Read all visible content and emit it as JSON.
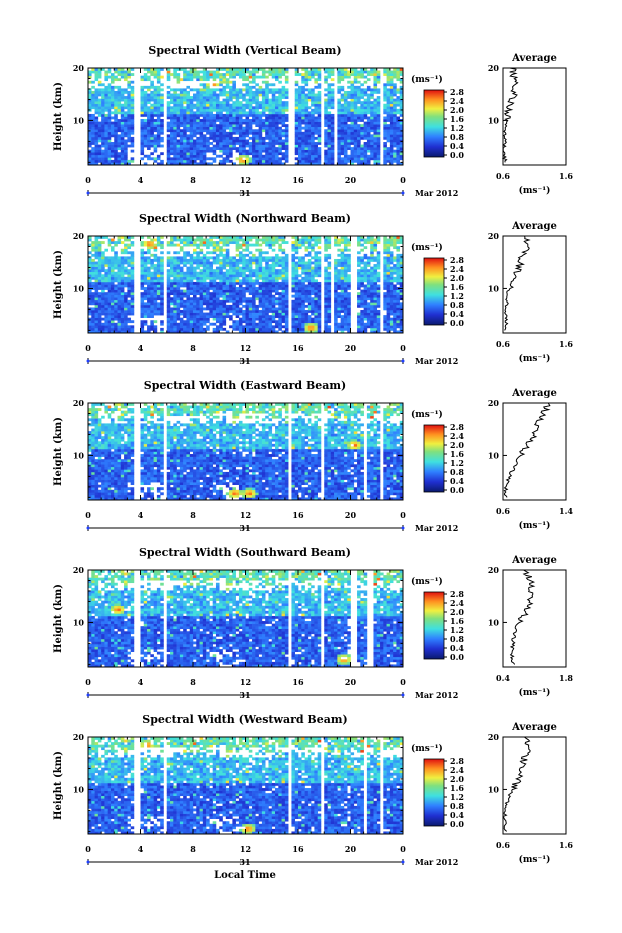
{
  "figure": {
    "x_axis_label": "Local Time",
    "date_label": "Mar 2012",
    "day_label": "31",
    "colorbar_unit": "(ms⁻¹)",
    "colorbar_ticks": [
      "0.0",
      "0.4",
      "0.8",
      "1.2",
      "1.6",
      "2.0",
      "2.4",
      "2.8"
    ],
    "x_ticks": [
      "0",
      "4",
      "8",
      "12",
      "16",
      "20",
      "0"
    ],
    "y_label": "Height (km)",
    "y_ticks": [
      "10",
      "20"
    ],
    "average_title": "Average",
    "average_xlabel": "(ms⁻¹)"
  },
  "chart_data": [
    {
      "type": "heatmap",
      "title": "Spectral Width (Vertical Beam)",
      "xlabel": "",
      "ylabel": "Height (km)",
      "x_range_hours": [
        0,
        24
      ],
      "ylim": [
        1.5,
        20
      ],
      "clim": [
        0,
        2.8
      ],
      "gaps_hours": [
        [
          3.6,
          3.9
        ],
        [
          5.8,
          6.1
        ],
        [
          15.2,
          15.7
        ],
        [
          17.8,
          18.1
        ],
        [
          18.7,
          19.0
        ],
        [
          20.9,
          21.1
        ],
        [
          22.3,
          22.6
        ]
      ],
      "hotspots": [
        {
          "x_hours": 11.8,
          "height_km": 2.5
        },
        {
          "x_hours": 9.5,
          "height_km": 17
        }
      ],
      "avg_profile": {
        "xlim": [
          0.6,
          1.6
        ],
        "xticks": [
          "0.6",
          "1.6"
        ],
        "height_km": [
          2,
          4,
          6,
          8,
          10,
          12,
          14,
          16,
          18,
          20
        ],
        "values": [
          0.63,
          0.62,
          0.63,
          0.64,
          0.66,
          0.7,
          0.75,
          0.8,
          0.78,
          0.75
        ]
      }
    },
    {
      "type": "heatmap",
      "title": "Spectral Width (Northward Beam)",
      "xlabel": "",
      "ylabel": "Height (km)",
      "x_range_hours": [
        0,
        24
      ],
      "ylim": [
        1.5,
        20
      ],
      "clim": [
        0,
        2.8
      ],
      "gaps_hours": [
        [
          3.6,
          3.9
        ],
        [
          5.8,
          6.1
        ],
        [
          15.2,
          15.5
        ],
        [
          17.8,
          18.1
        ],
        [
          18.5,
          18.8
        ],
        [
          20.0,
          20.5
        ],
        [
          22.3,
          22.6
        ]
      ],
      "hotspots": [
        {
          "x_hours": 17.0,
          "height_km": 2.5
        },
        {
          "x_hours": 4.7,
          "height_km": 18.5
        }
      ],
      "avg_profile": {
        "xlim": [
          0.6,
          1.6
        ],
        "xticks": [
          "0.6",
          "1.6"
        ],
        "height_km": [
          2,
          4,
          6,
          8,
          10,
          12,
          14,
          16,
          18,
          20
        ],
        "values": [
          0.65,
          0.64,
          0.65,
          0.67,
          0.7,
          0.76,
          0.85,
          0.9,
          1.05,
          0.9
        ]
      }
    },
    {
      "type": "heatmap",
      "title": "Spectral Width (Eastward Beam)",
      "xlabel": "",
      "ylabel": "Height (km)",
      "x_range_hours": [
        0,
        24
      ],
      "ylim": [
        1.5,
        20
      ],
      "clim": [
        0,
        2.8
      ],
      "gaps_hours": [
        [
          3.6,
          3.9
        ],
        [
          5.8,
          6.1
        ],
        [
          15.2,
          15.5
        ],
        [
          17.8,
          18.1
        ],
        [
          20.9,
          21.2
        ],
        [
          22.3,
          22.6
        ]
      ],
      "hotspots": [
        {
          "x_hours": 11.2,
          "height_km": 2.8
        },
        {
          "x_hours": 12.3,
          "height_km": 2.8
        },
        {
          "x_hours": 20.3,
          "height_km": 12
        }
      ],
      "avg_profile": {
        "xlim": [
          0.6,
          1.4
        ],
        "xticks": [
          "0.6",
          "1.4"
        ],
        "height_km": [
          2,
          4,
          6,
          8,
          10,
          12,
          14,
          16,
          18,
          20
        ],
        "values": [
          0.63,
          0.64,
          0.68,
          0.75,
          0.82,
          0.9,
          1.0,
          1.05,
          1.1,
          1.2
        ]
      }
    },
    {
      "type": "heatmap",
      "title": "Spectral Width (Southward Beam)",
      "xlabel": "",
      "ylabel": "Height (km)",
      "x_range_hours": [
        0,
        24
      ],
      "ylim": [
        1.5,
        20
      ],
      "clim": [
        0,
        2.8
      ],
      "gaps_hours": [
        [
          3.6,
          3.9
        ],
        [
          5.8,
          6.1
        ],
        [
          15.2,
          15.5
        ],
        [
          17.8,
          18.1
        ],
        [
          20.0,
          20.5
        ],
        [
          21.3,
          21.7
        ]
      ],
      "hotspots": [
        {
          "x_hours": 19.5,
          "height_km": 3.0
        },
        {
          "x_hours": 2.3,
          "height_km": 12.5
        }
      ],
      "avg_profile": {
        "xlim": [
          0.4,
          1.8
        ],
        "xticks": [
          "0.4",
          "1.8"
        ],
        "height_km": [
          2,
          4,
          6,
          8,
          10,
          12,
          14,
          16,
          18,
          20
        ],
        "values": [
          0.62,
          0.6,
          0.62,
          0.65,
          0.75,
          0.9,
          1.0,
          1.05,
          1.0,
          0.9
        ]
      }
    },
    {
      "type": "heatmap",
      "title": "Spectral Width (Westward Beam)",
      "xlabel": "Local Time",
      "ylabel": "Height (km)",
      "x_range_hours": [
        0,
        24
      ],
      "ylim": [
        1.5,
        20
      ],
      "clim": [
        0,
        2.8
      ],
      "gaps_hours": [
        [
          3.6,
          3.9
        ],
        [
          5.8,
          6.1
        ],
        [
          15.2,
          15.5
        ],
        [
          17.8,
          18.1
        ],
        [
          20.9,
          21.2
        ],
        [
          22.3,
          22.6
        ]
      ],
      "hotspots": [
        {
          "x_hours": 12.2,
          "height_km": 2.5
        },
        {
          "x_hours": 4.5,
          "height_km": 18.5
        }
      ],
      "avg_profile": {
        "xlim": [
          0.6,
          1.6
        ],
        "xticks": [
          "0.6",
          "1.6"
        ],
        "height_km": [
          2,
          4,
          6,
          8,
          10,
          12,
          14,
          16,
          18,
          20
        ],
        "values": [
          0.63,
          0.62,
          0.64,
          0.68,
          0.75,
          0.85,
          0.9,
          0.95,
          1.0,
          0.95
        ]
      }
    }
  ]
}
